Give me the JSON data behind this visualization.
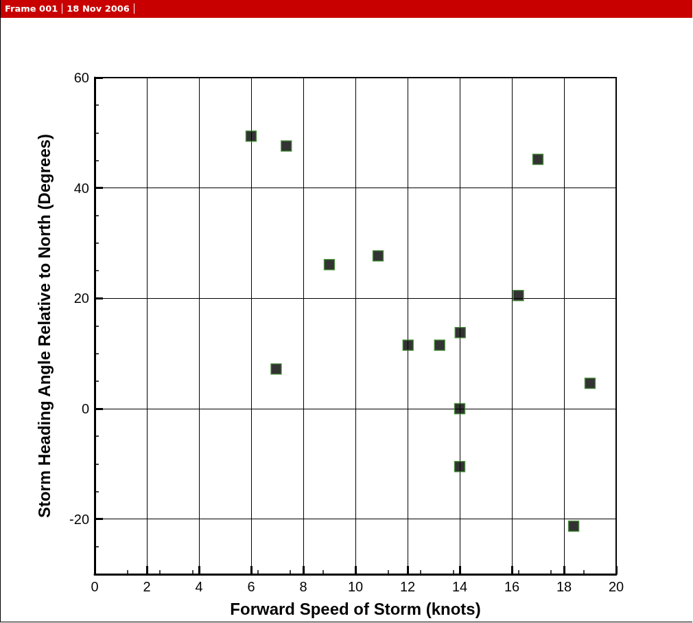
{
  "chart_data": {
    "type": "scatter",
    "annotations": [
      "Frame 001",
      "18 Nov 2006"
    ],
    "xlabel": "Forward Speed of Storm (knots)",
    "ylabel": "Storm Heading Angle Relative to North (Degrees)",
    "x": [
      6.0,
      7.35,
      17.0,
      9.0,
      10.87,
      16.25,
      6.96,
      12.02,
      13.23,
      14.02,
      14.0,
      14.0,
      19.0,
      18.37
    ],
    "values": [
      49.4,
      47.6,
      45.2,
      26.1,
      27.7,
      20.5,
      7.2,
      11.5,
      11.5,
      13.8,
      0,
      -10.5,
      4.6,
      -21.3
    ],
    "color": "#000000",
    "marker": "square",
    "xlim": [
      0,
      20
    ],
    "xticks": [
      0,
      2,
      4,
      6,
      8,
      10,
      12,
      14,
      16,
      18,
      20
    ],
    "ylim": [
      -30,
      60
    ],
    "yticks": [
      -20,
      0,
      20,
      40,
      60
    ],
    "grid": true
  }
}
